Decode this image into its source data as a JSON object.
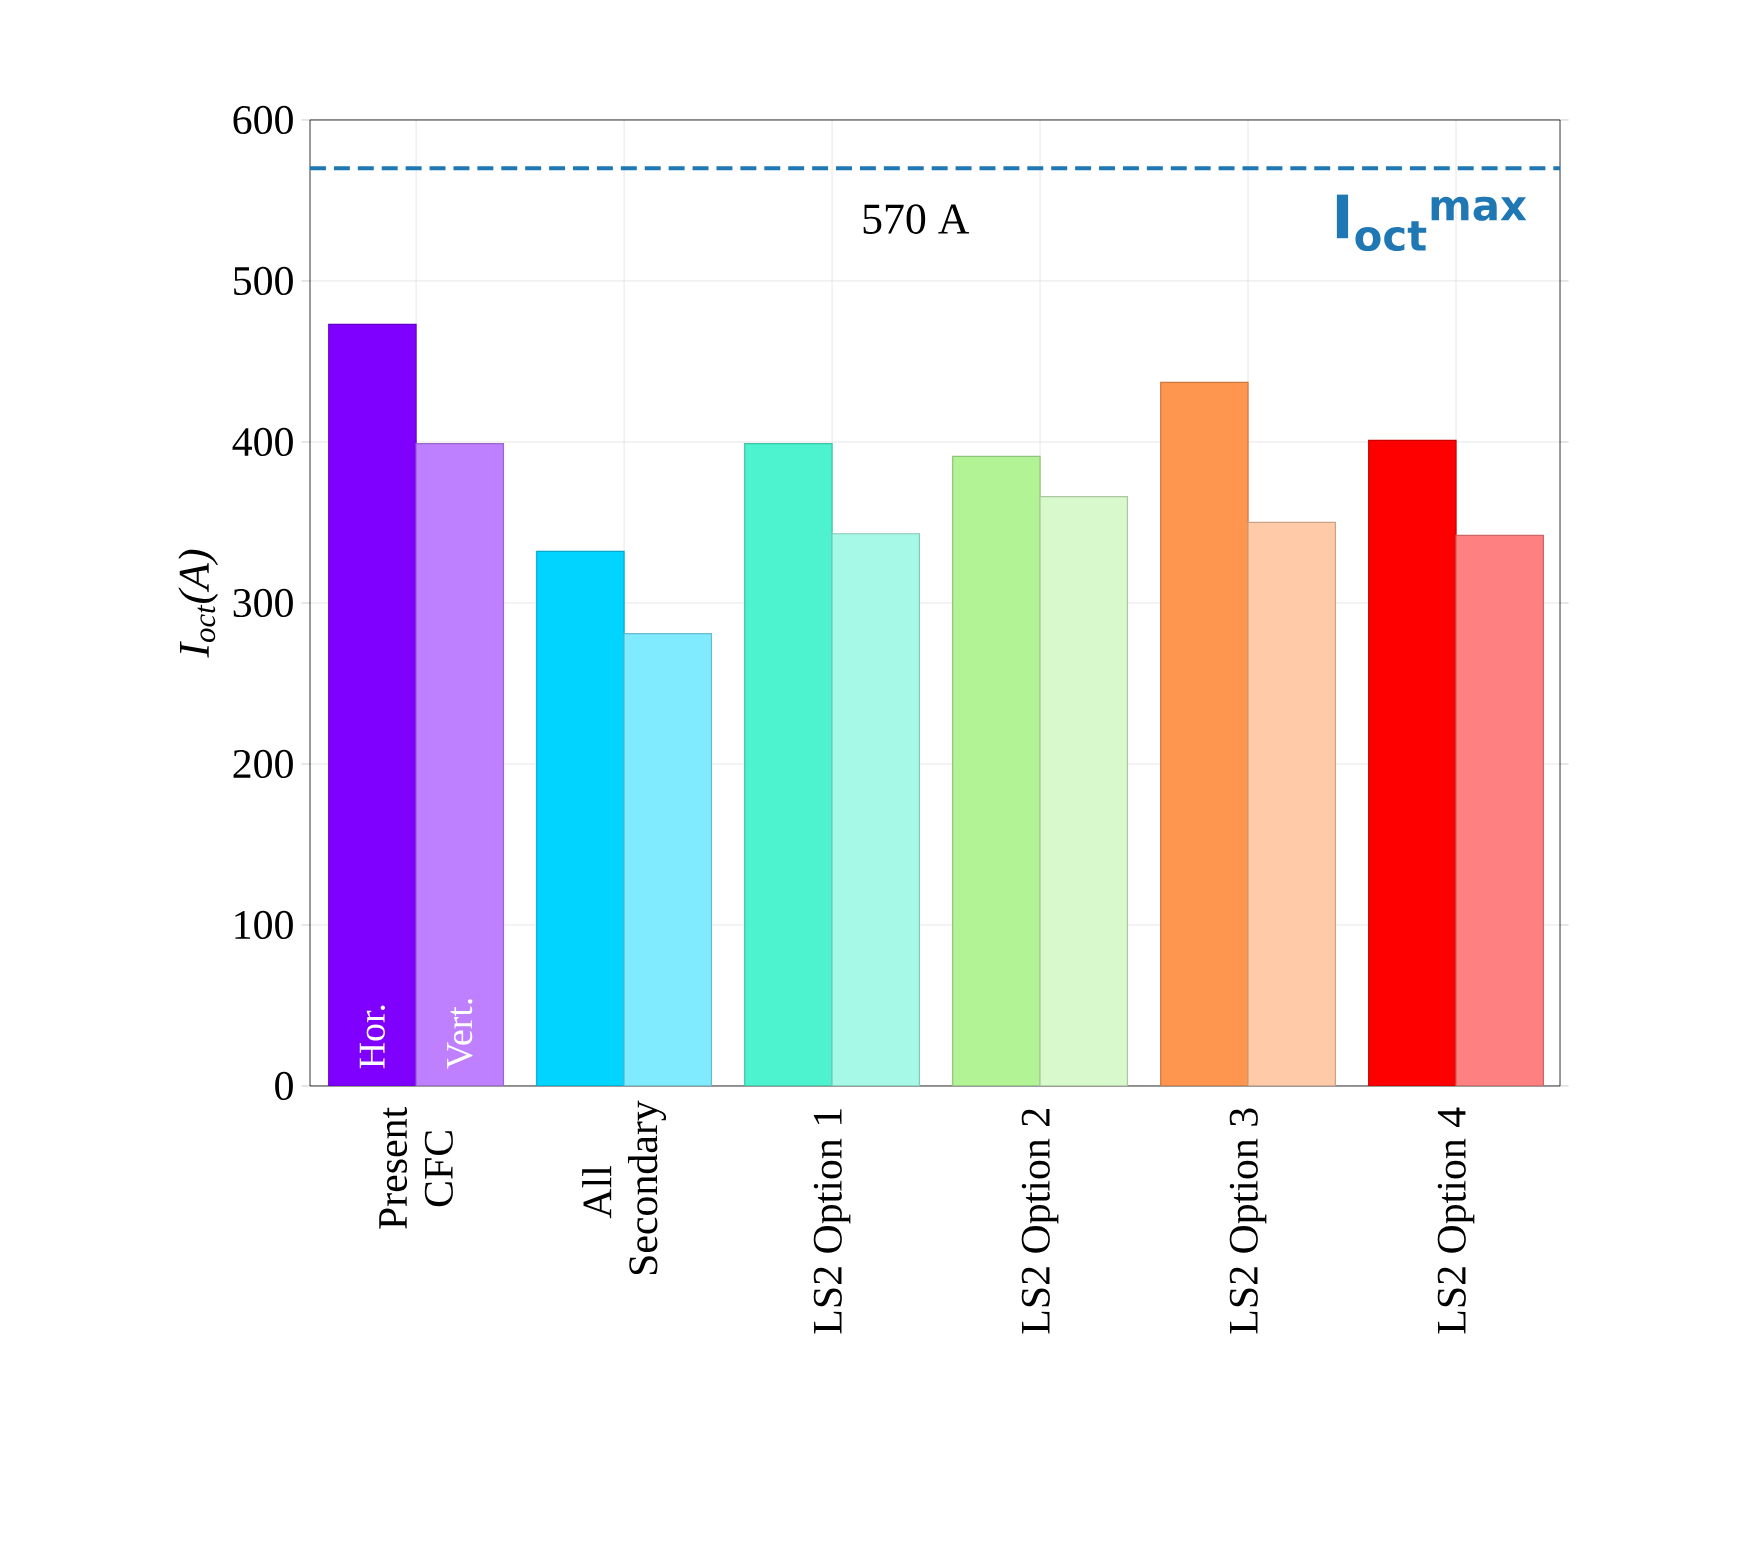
{
  "chart_data": {
    "type": "bar",
    "ylabel": "I$_{oct}$(A)",
    "categories": [
      "Present CFC",
      "All Secondary",
      "LS2 Option 1",
      "LS2 Option 2",
      "LS2 Option 3",
      "LS2 Option 4"
    ],
    "series": [
      {
        "name": "Hor.",
        "values": [
          473,
          332,
          399,
          391,
          437,
          401
        ],
        "colors": [
          "#8000ff",
          "#00d4ff",
          "#4df3ce",
          "#b2f396",
          "#ff964f",
          "#ff0000"
        ]
      },
      {
        "name": "Vert.",
        "values": [
          399,
          281,
          343,
          366,
          350,
          342
        ],
        "colors": [
          "#bf80ff",
          "#80eaff",
          "#a6f9e6",
          "#d8f9cb",
          "#ffcaa7",
          "#ff8080"
        ]
      }
    ],
    "ylim": [
      0,
      600
    ],
    "yticks": [
      0,
      100,
      200,
      300,
      400,
      500,
      600
    ],
    "grid": true,
    "ref_lines": [
      {
        "axis": "y",
        "value": 570,
        "label": "570 A",
        "color": "#1f77b4",
        "line_style": "dashed"
      }
    ],
    "annotations": [
      "I$_{oct}$$^{max}$"
    ]
  }
}
